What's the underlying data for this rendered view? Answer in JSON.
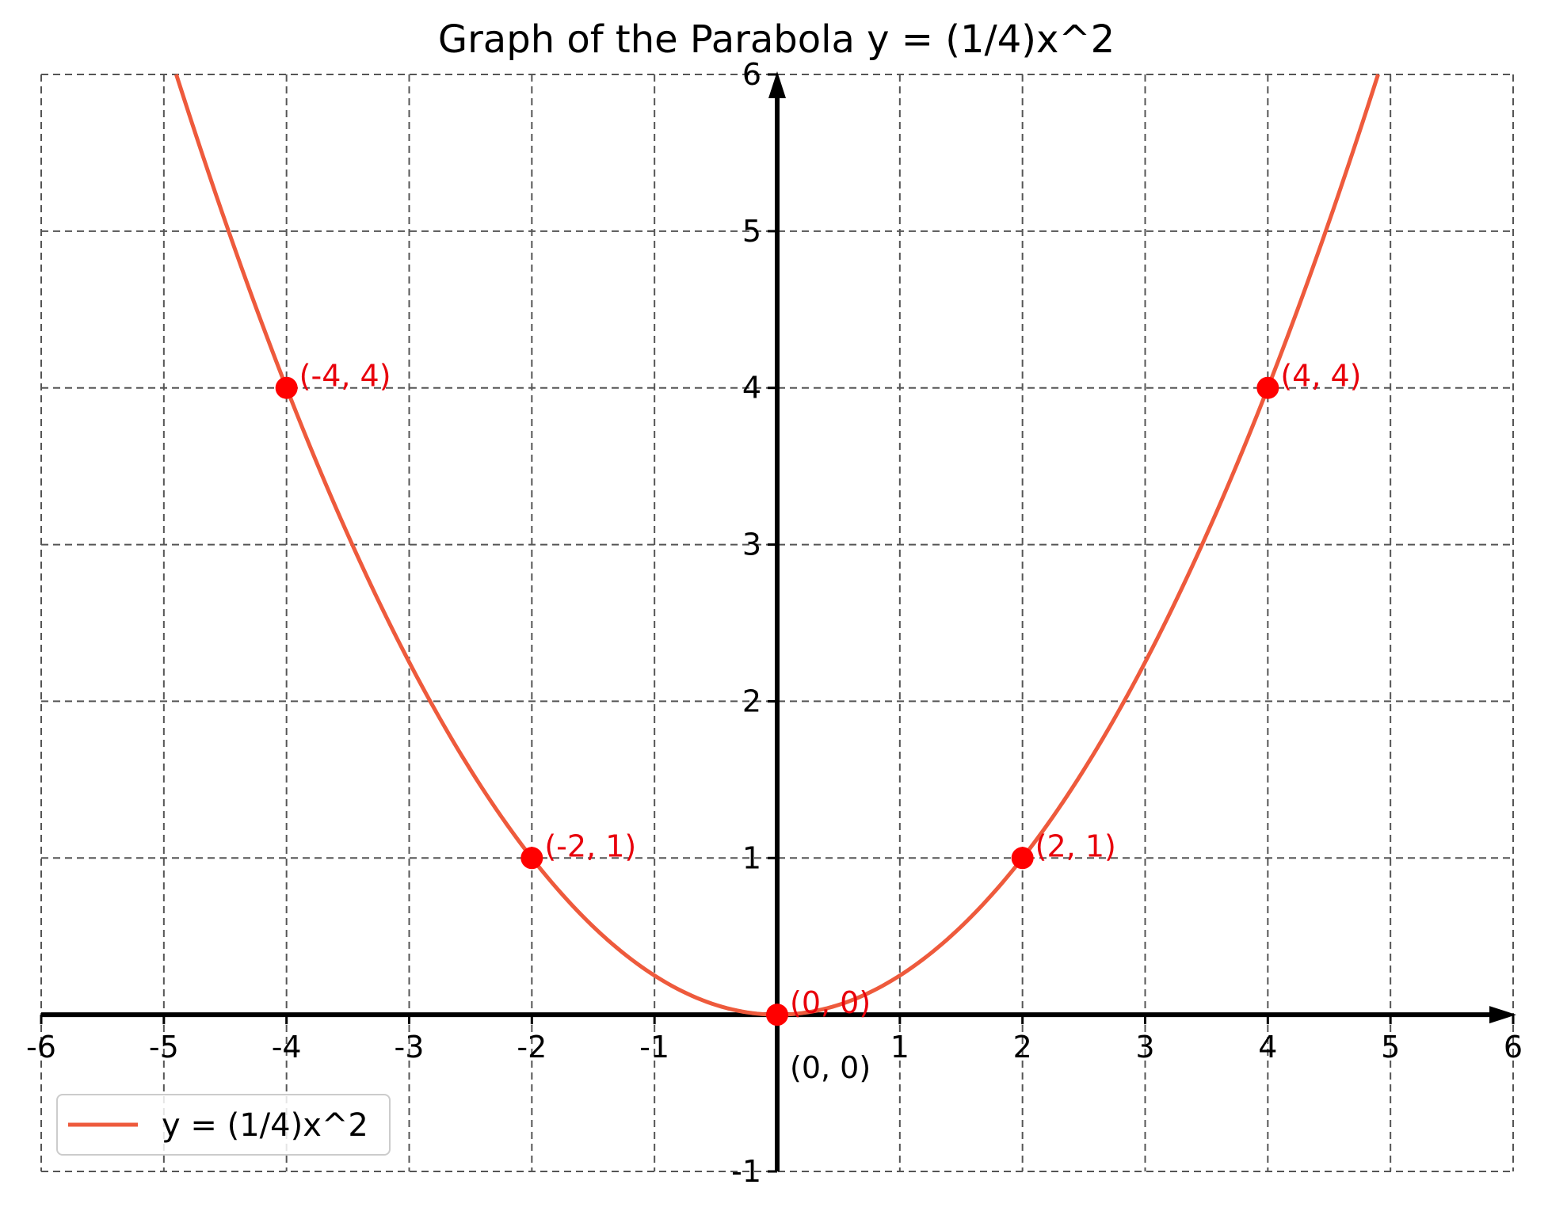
{
  "chart_data": {
    "type": "line",
    "title": "Graph of the Parabola y = (1/4)x^2",
    "xlabel": "",
    "ylabel": "",
    "xlim": [
      -6,
      6
    ],
    "ylim": [
      -1,
      6
    ],
    "grid": true,
    "x_ticks": [
      -6,
      -5,
      -4,
      -3,
      -2,
      -1,
      1,
      2,
      3,
      4,
      5,
      6
    ],
    "y_ticks": [
      -1,
      1,
      2,
      3,
      4,
      5,
      6
    ],
    "x_tick_labels": [
      "-6",
      "-5",
      "-4",
      "-3",
      "-2",
      "-1",
      "1",
      "2",
      "3",
      "4",
      "5",
      "6"
    ],
    "y_tick_labels": [
      "-1",
      "1",
      "2",
      "3",
      "4",
      "5",
      "6"
    ],
    "series": [
      {
        "name": "y = (1/4)x^2",
        "color": "#ee5a3c",
        "equation": "y = (1/4)x^2",
        "coefficient": 0.25
      }
    ],
    "points": [
      {
        "x": -4,
        "y": 4,
        "label": "(-4, 4)"
      },
      {
        "x": -2,
        "y": 1,
        "label": "(-2, 1)"
      },
      {
        "x": 0,
        "y": 0,
        "label": "(0, 0)"
      },
      {
        "x": 2,
        "y": 1,
        "label": "(2, 1)"
      },
      {
        "x": 4,
        "y": 4,
        "label": "(4, 4)"
      }
    ],
    "point_color": "#ff0000",
    "label_color": "#e8000b",
    "origin_annotation": "(0, 0)",
    "legend": {
      "placement": "bottom-left",
      "entries": [
        "y = (1/4)x^2"
      ]
    }
  }
}
